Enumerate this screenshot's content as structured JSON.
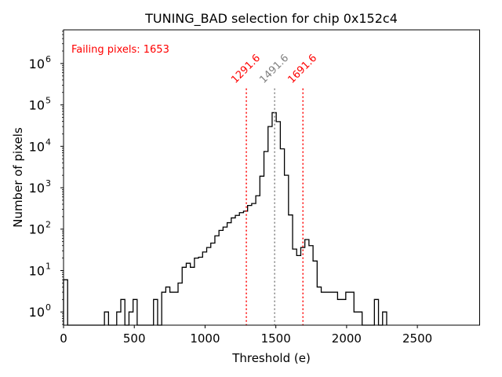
{
  "chart_data": {
    "type": "histogram",
    "title": "TUNING_BAD selection for chip 0x152c4",
    "xlabel": "Threshold (e)",
    "ylabel": "Number of pixels",
    "xlim": [
      0,
      2940
    ],
    "ylim": [
      0.48,
      6500000.0
    ],
    "yscale": "log",
    "grid": false,
    "x_ticks": [
      0,
      500,
      1000,
      1500,
      2000,
      2500
    ],
    "x_tick_labels": [
      "0",
      "500",
      "1000",
      "1500",
      "2000",
      "2500"
    ],
    "y_ticks": [
      1,
      10,
      100,
      1000,
      10000,
      100000,
      1000000
    ],
    "y_tick_labels": [
      {
        "base": "10",
        "exp": "0"
      },
      {
        "base": "10",
        "exp": "1"
      },
      {
        "base": "10",
        "exp": "2"
      },
      {
        "base": "10",
        "exp": "3"
      },
      {
        "base": "10",
        "exp": "4"
      },
      {
        "base": "10",
        "exp": "5"
      },
      {
        "base": "10",
        "exp": "6"
      }
    ],
    "bin_width": 28.9,
    "bin_start": 0,
    "counts": [
      6,
      0,
      0,
      0,
      0,
      0,
      0,
      0,
      0,
      0,
      1,
      0,
      0,
      1,
      2,
      0,
      1,
      2,
      0,
      0,
      0,
      0,
      2,
      0,
      3,
      4,
      3,
      3,
      5,
      12,
      15,
      12,
      20,
      21,
      28,
      36,
      46,
      69,
      93,
      112,
      143,
      187,
      215,
      250,
      272,
      373,
      416,
      640,
      1900,
      7500,
      30000,
      65000,
      39500,
      8700,
      2000,
      220,
      33,
      23,
      36,
      56,
      40,
      17,
      4,
      3,
      3,
      3,
      3,
      2,
      2,
      3,
      3,
      1,
      1,
      0,
      0,
      0,
      2,
      0,
      1
    ],
    "histogram_color": "#000000",
    "annotation": {
      "text": "Failing pixels: 1653",
      "color": "#ff0000",
      "position": "top-left"
    },
    "vlines": [
      {
        "x": 1291.6,
        "label": "1291.6",
        "color": "#ff0000",
        "style": "dotted",
        "ymax": 250000
      },
      {
        "x": 1491.6,
        "label": "1491.6",
        "color": "#808080",
        "style": "dotted",
        "ymax": 250000
      },
      {
        "x": 1691.6,
        "label": "1691.6",
        "color": "#ff0000",
        "style": "dotted",
        "ymax": 250000
      }
    ]
  }
}
